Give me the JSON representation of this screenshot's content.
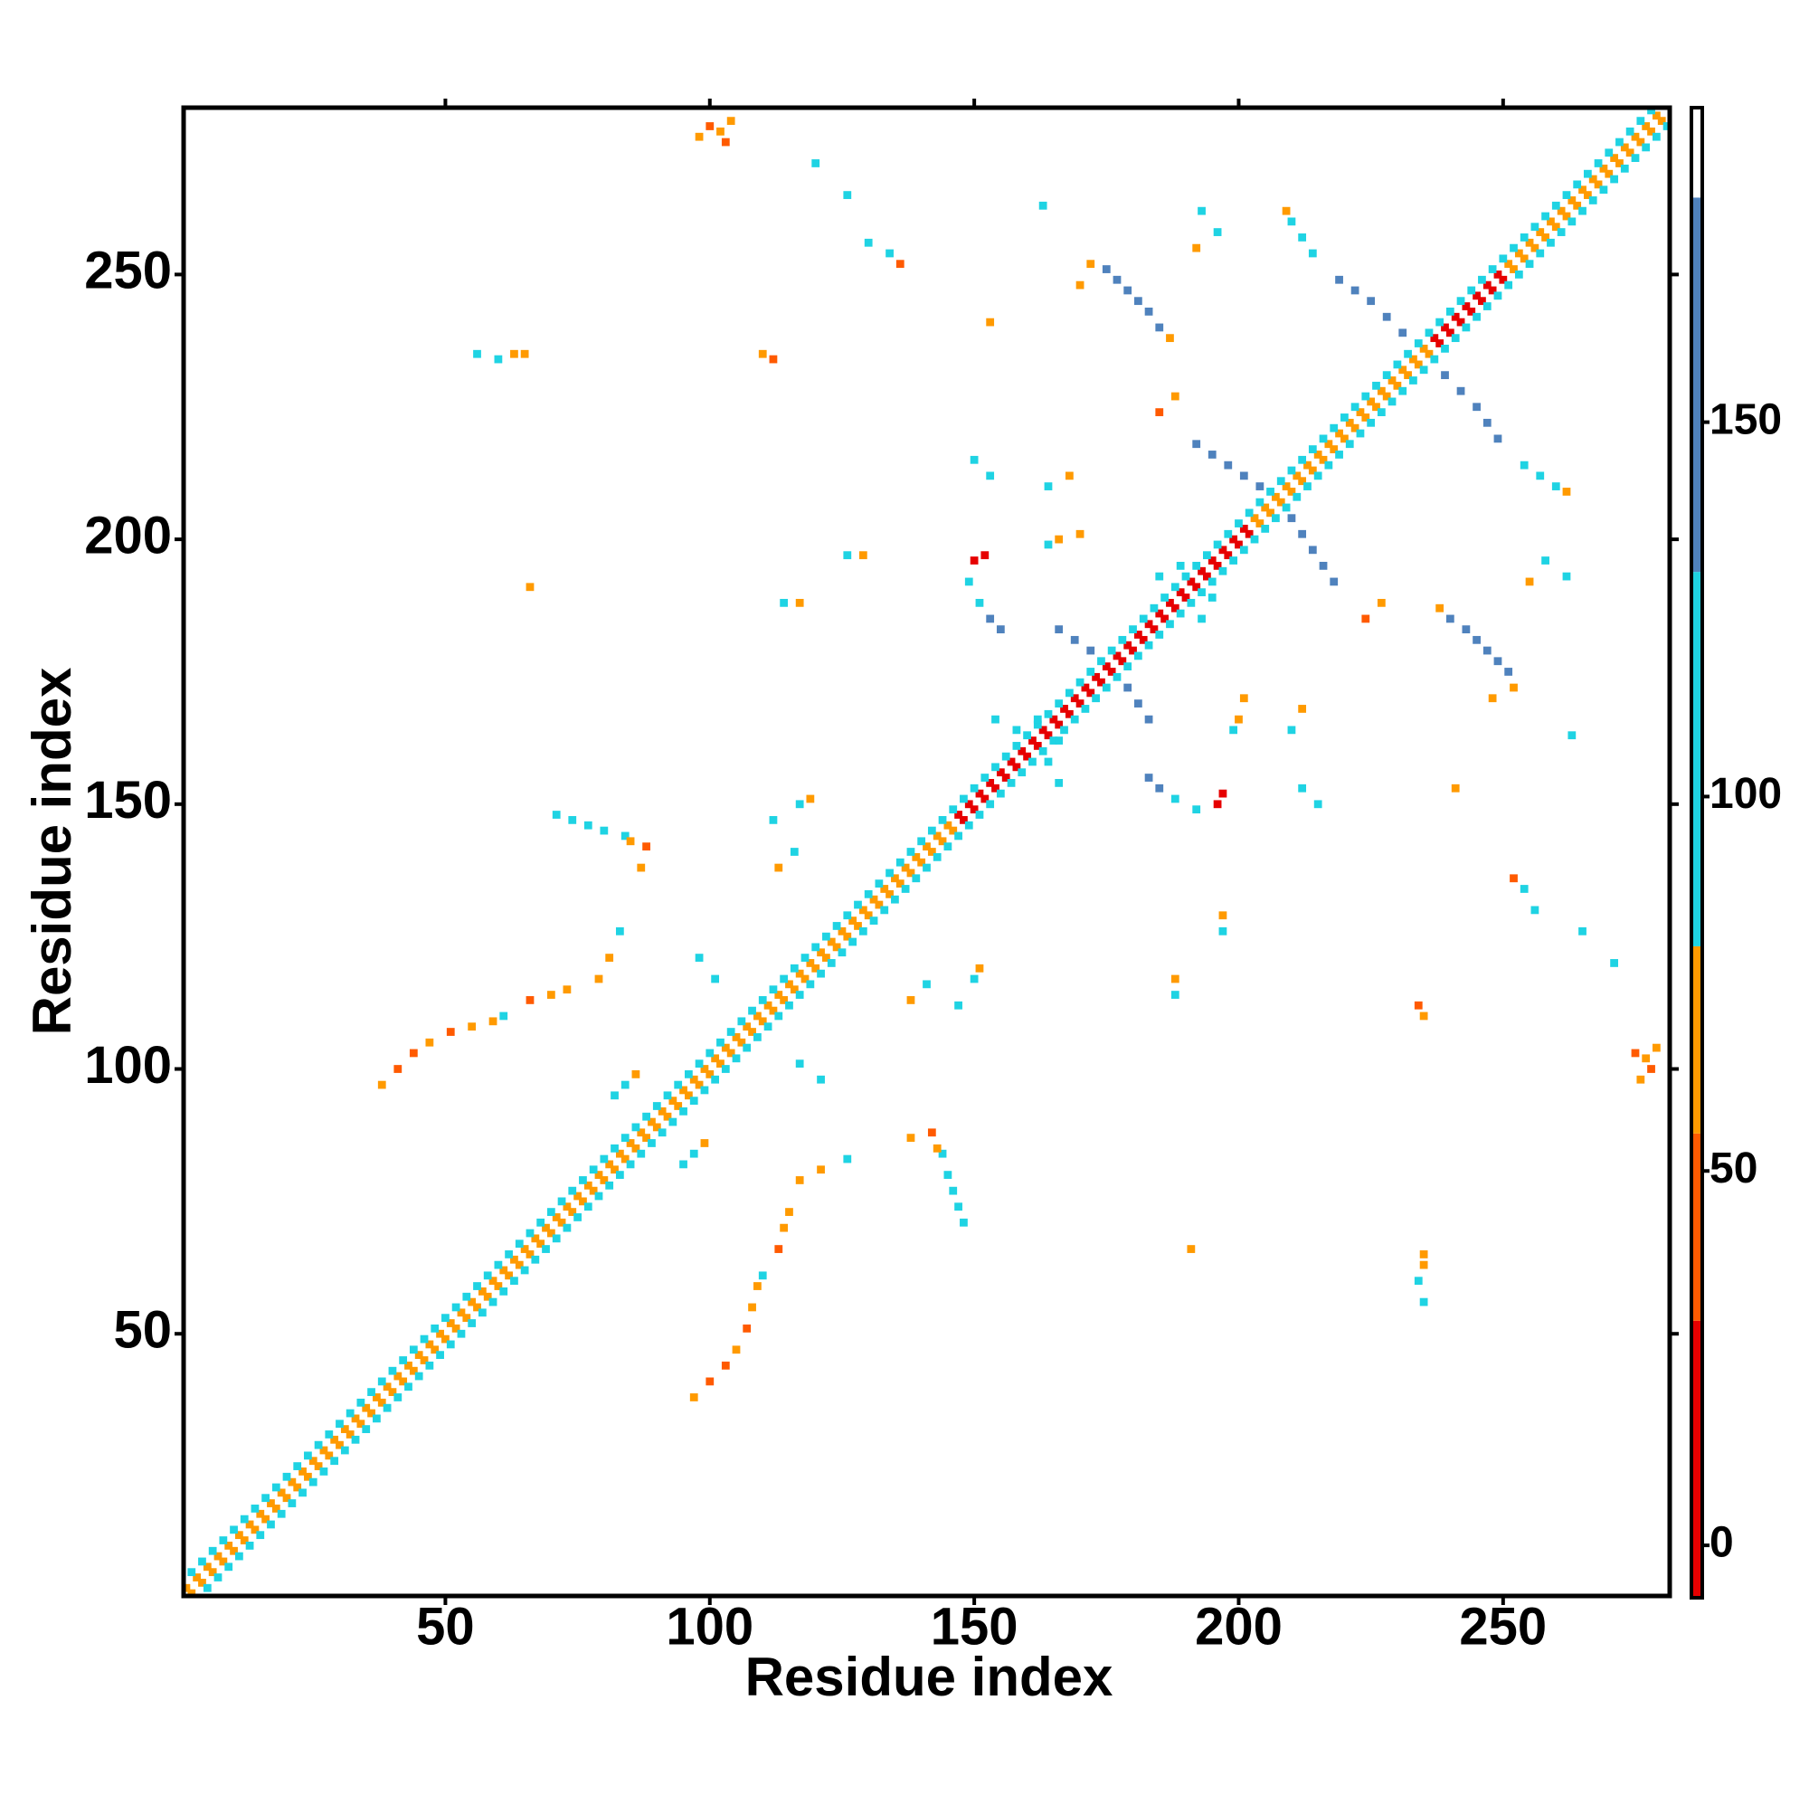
{
  "chart_data": {
    "type": "heatmap",
    "xlabel": "Residue index",
    "ylabel": "Residue index",
    "xlim": [
      0.5,
      281.5
    ],
    "ylim": [
      0.5,
      281.5
    ],
    "xticks": [
      50,
      100,
      150,
      200,
      250
    ],
    "yticks": [
      50,
      100,
      150,
      200,
      250
    ],
    "symmetric": true,
    "x": [
      1,
      3,
      5,
      7,
      9,
      11,
      13,
      15,
      17,
      19,
      21,
      23,
      25,
      27,
      29,
      31,
      33,
      35,
      37,
      39,
      41,
      43,
      45,
      47,
      49,
      51,
      53,
      55,
      57,
      59,
      61,
      63,
      65,
      67,
      69,
      71,
      73,
      75,
      77,
      79,
      81,
      83,
      85,
      87,
      89,
      91,
      93,
      95,
      97,
      99,
      101,
      103,
      105,
      107,
      109,
      111,
      113,
      115,
      117,
      119,
      121,
      123,
      125,
      127,
      129,
      131,
      133,
      135,
      137,
      139,
      141,
      143,
      145,
      147,
      149,
      151,
      153,
      155,
      157,
      159,
      161,
      163,
      165,
      167,
      169,
      171,
      173,
      175,
      177,
      179,
      181,
      183,
      185,
      187,
      189,
      191,
      193,
      195,
      197,
      199,
      201,
      203,
      205,
      207,
      209,
      211,
      213,
      215,
      217,
      219,
      221,
      223,
      225,
      227,
      229,
      231,
      233,
      235,
      237,
      239,
      241,
      243,
      245,
      247,
      249,
      251,
      253,
      255,
      257,
      259,
      261,
      263,
      265,
      267,
      269,
      271,
      273,
      275,
      277,
      279,
      2,
      4,
      6,
      8,
      10,
      12,
      14,
      16,
      18,
      20,
      22,
      24,
      26,
      28,
      30,
      32,
      34,
      36,
      38,
      40,
      42,
      44,
      46,
      48,
      50,
      52,
      54,
      56,
      58,
      60,
      62,
      64,
      66,
      68,
      70,
      72,
      74,
      76,
      78,
      80,
      82,
      84,
      86,
      88,
      90,
      92,
      94,
      96,
      98,
      100,
      102,
      104,
      106,
      108,
      110,
      112,
      114,
      116,
      118,
      120,
      122,
      124,
      126,
      128,
      130,
      132,
      134,
      136,
      138,
      140,
      142,
      144,
      146,
      148,
      150,
      152,
      154,
      156,
      158,
      160,
      162,
      164,
      166,
      168,
      170,
      172,
      174,
      176,
      178,
      180,
      182,
      184,
      186,
      188,
      190,
      192,
      194,
      196,
      198,
      200,
      202,
      204,
      206,
      208,
      210,
      212,
      214,
      216,
      218,
      220,
      222,
      224,
      226,
      228,
      230,
      232,
      234,
      236,
      238,
      240,
      242,
      244,
      246,
      248,
      250,
      252,
      254,
      256,
      258,
      260,
      262,
      264,
      266,
      268,
      270,
      272,
      274,
      276,
      278,
      98,
      100,
      102,
      104,
      103,
      56,
      60,
      63,
      65,
      110,
      112,
      120,
      126,
      130,
      134,
      136,
      153,
      163,
      175,
      177,
      179,
      181,
      183,
      185,
      187,
      172,
      170,
      209,
      210,
      212,
      214,
      219,
      222,
      225,
      228,
      231,
      193,
      196,
      192,
      192,
      195,
      198,
      201,
      204,
      166,
      169,
      172,
      150,
      152,
      149,
      151,
      153,
      155,
      166,
      170,
      164,
      164,
      168,
      185,
      188,
      150,
      153,
      117,
      119,
      114,
      117,
      126,
      129,
      66,
      71,
      74,
      77,
      80,
      84,
      85,
      88,
      87,
      38,
      41,
      44,
      47,
      51,
      55,
      59,
      61,
      66,
      70,
      73,
      79,
      81,
      83,
      82,
      84,
      86,
      98,
      101,
      112,
      116,
      113,
      154,
      158,
      162,
      185,
      189
    ],
    "y": [
      2,
      4,
      6,
      8,
      10,
      12,
      14,
      16,
      18,
      20,
      22,
      24,
      26,
      28,
      30,
      32,
      34,
      36,
      38,
      40,
      42,
      44,
      46,
      48,
      50,
      52,
      54,
      56,
      58,
      60,
      62,
      64,
      66,
      68,
      70,
      72,
      74,
      76,
      78,
      80,
      82,
      84,
      86,
      88,
      90,
      92,
      94,
      96,
      98,
      100,
      102,
      104,
      106,
      108,
      110,
      112,
      114,
      116,
      118,
      120,
      122,
      124,
      126,
      128,
      130,
      132,
      134,
      136,
      138,
      140,
      142,
      144,
      146,
      148,
      150,
      152,
      154,
      156,
      158,
      160,
      162,
      164,
      166,
      168,
      170,
      172,
      174,
      176,
      178,
      180,
      182,
      184,
      186,
      188,
      190,
      192,
      194,
      196,
      198,
      200,
      202,
      204,
      206,
      208,
      210,
      212,
      214,
      216,
      218,
      220,
      222,
      224,
      226,
      228,
      230,
      232,
      234,
      236,
      238,
      240,
      242,
      244,
      246,
      248,
      250,
      252,
      254,
      256,
      258,
      260,
      262,
      264,
      266,
      268,
      270,
      272,
      274,
      276,
      278,
      280,
      5,
      7,
      9,
      11,
      13,
      15,
      17,
      19,
      21,
      23,
      25,
      27,
      29,
      31,
      33,
      35,
      37,
      39,
      41,
      43,
      45,
      47,
      49,
      51,
      53,
      55,
      57,
      59,
      61,
      63,
      65,
      67,
      69,
      71,
      73,
      75,
      77,
      79,
      81,
      83,
      85,
      87,
      89,
      91,
      93,
      95,
      97,
      99,
      101,
      103,
      105,
      107,
      109,
      111,
      113,
      115,
      117,
      119,
      121,
      123,
      125,
      127,
      129,
      131,
      133,
      135,
      137,
      139,
      141,
      143,
      145,
      147,
      149,
      151,
      153,
      155,
      157,
      159,
      161,
      163,
      165,
      167,
      169,
      171,
      173,
      175,
      177,
      179,
      181,
      183,
      185,
      187,
      189,
      191,
      193,
      195,
      197,
      199,
      201,
      203,
      205,
      207,
      209,
      211,
      213,
      215,
      217,
      219,
      221,
      223,
      225,
      227,
      229,
      231,
      233,
      235,
      237,
      239,
      241,
      243,
      245,
      247,
      249,
      251,
      253,
      255,
      257,
      259,
      261,
      263,
      265,
      267,
      269,
      271,
      273,
      275,
      277,
      279,
      281,
      276,
      278,
      277,
      279,
      275,
      235,
      234,
      235,
      235,
      235,
      234,
      271,
      265,
      256,
      254,
      252,
      241,
      263,
      251,
      249,
      247,
      245,
      243,
      240,
      238,
      252,
      248,
      262,
      260,
      257,
      254,
      249,
      247,
      245,
      242,
      239,
      262,
      258,
      255,
      218,
      216,
      214,
      212,
      210,
      183,
      181,
      179,
      196,
      197,
      192,
      188,
      185,
      183,
      200,
      201,
      199,
      210,
      212,
      224,
      227,
      215,
      212,
      150,
      151,
      188,
      188,
      197,
      197,
      191,
      148,
      147,
      146,
      145,
      144,
      143,
      142,
      138,
      97,
      100,
      103,
      105,
      107,
      108,
      109,
      110,
      113,
      114,
      115,
      117,
      121,
      126,
      95,
      97,
      99,
      121,
      117,
      147,
      141,
      138,
      166,
      164,
      166,
      193,
      195
    ],
    "values": [
      60,
      60,
      60,
      60,
      60,
      60,
      60,
      60,
      60,
      60,
      60,
      60,
      60,
      60,
      60,
      60,
      60,
      60,
      60,
      60,
      60,
      60,
      60,
      60,
      60,
      60,
      60,
      60,
      60,
      60,
      60,
      60,
      60,
      60,
      60,
      60,
      60,
      60,
      60,
      60,
      60,
      60,
      60,
      60,
      60,
      60,
      60,
      60,
      60,
      60,
      60,
      60,
      60,
      60,
      60,
      60,
      60,
      60,
      60,
      60,
      60,
      60,
      60,
      60,
      60,
      60,
      60,
      60,
      60,
      60,
      60,
      60,
      60,
      10,
      10,
      10,
      10,
      10,
      10,
      10,
      10,
      10,
      10,
      10,
      10,
      10,
      10,
      10,
      10,
      10,
      10,
      10,
      10,
      10,
      10,
      10,
      10,
      10,
      10,
      10,
      10,
      60,
      60,
      60,
      60,
      60,
      60,
      60,
      60,
      60,
      60,
      60,
      60,
      60,
      60,
      60,
      60,
      60,
      10,
      10,
      10,
      10,
      10,
      10,
      10,
      60,
      60,
      60,
      60,
      60,
      60,
      60,
      60,
      60,
      60,
      60,
      60,
      60,
      60,
      60,
      110,
      110,
      110,
      110,
      110,
      110,
      110,
      110,
      110,
      110,
      110,
      110,
      110,
      110,
      110,
      110,
      110,
      110,
      110,
      110,
      110,
      110,
      110,
      110,
      110,
      110,
      110,
      110,
      110,
      110,
      110,
      110,
      110,
      110,
      110,
      110,
      110,
      110,
      110,
      110,
      110,
      110,
      110,
      110,
      110,
      110,
      110,
      110,
      110,
      110,
      110,
      110,
      110,
      110,
      110,
      110,
      110,
      110,
      110,
      110,
      110,
      110,
      110,
      110,
      110,
      110,
      110,
      110,
      110,
      110,
      110,
      110,
      110,
      110,
      110,
      110,
      110,
      110,
      110,
      110,
      110,
      110,
      110,
      110,
      110,
      110,
      110,
      110,
      110,
      110,
      110,
      110,
      110,
      110,
      110,
      110,
      110,
      110,
      110,
      110,
      110,
      110,
      110,
      110,
      110,
      110,
      110,
      110,
      110,
      110,
      110,
      110,
      110,
      110,
      110,
      110,
      110,
      110,
      110,
      110,
      110,
      110,
      110,
      110,
      110,
      110,
      110,
      110,
      110,
      110,
      110,
      110,
      110,
      110,
      110,
      110,
      110,
      110,
      110,
      60,
      40,
      60,
      60,
      40,
      110,
      110,
      60,
      60,
      60,
      40,
      110,
      110,
      110,
      110,
      40,
      60,
      110,
      150,
      150,
      150,
      150,
      150,
      150,
      60,
      60,
      60,
      60,
      110,
      110,
      110,
      150,
      150,
      150,
      150,
      150,
      110,
      110,
      60,
      150,
      150,
      150,
      150,
      150,
      150,
      150,
      150,
      10,
      10,
      110,
      110,
      150,
      150,
      60,
      60,
      110,
      110,
      60,
      40,
      60,
      110,
      110,
      110,
      60,
      110,
      60,
      110,
      60,
      60,
      110,
      110,
      110,
      110,
      110,
      60,
      40,
      60,
      60,
      40,
      40,
      60,
      40,
      60,
      60,
      110,
      40,
      60,
      60,
      60,
      60,
      110,
      110,
      110,
      60,
      110,
      110,
      110,
      110,
      60,
      110,
      110,
      110,
      110,
      110
    ],
    "colorbar": {
      "lim": [
        -7,
        192
      ],
      "ticks": [
        0,
        50,
        100,
        150
      ],
      "bounds": [
        -7,
        30,
        55,
        80,
        130,
        180,
        192
      ],
      "colors": [
        "#e60000",
        "#ff5a00",
        "#ff9a00",
        "#1fd3e3",
        "#4f82bd",
        "#ffffff"
      ]
    }
  }
}
